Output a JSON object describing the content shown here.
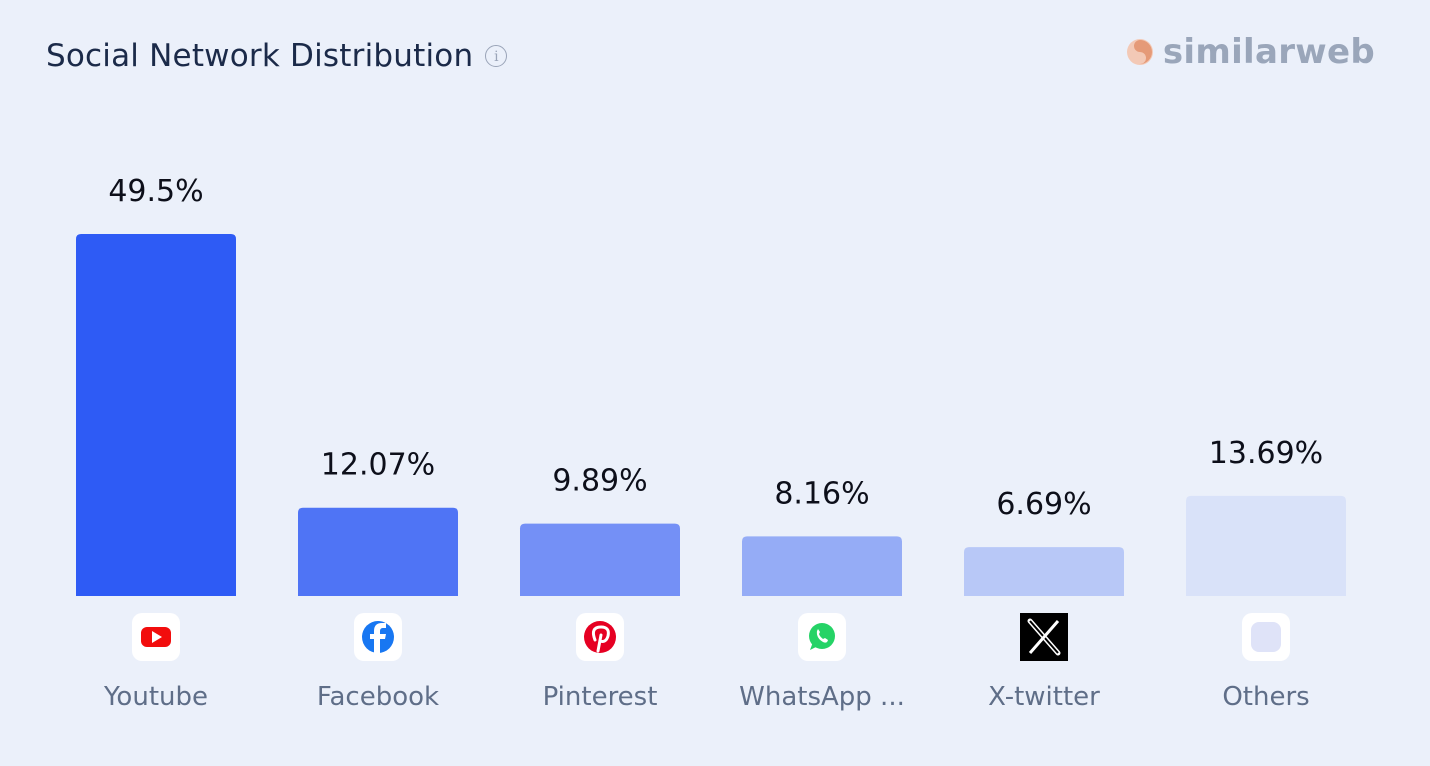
{
  "header": {
    "title": "Social Network Distribution",
    "info_icon": "info-icon"
  },
  "brand": {
    "name": "similarweb",
    "logo_icon": "similarweb-logo-icon",
    "color": "#9aa6ba"
  },
  "chart_data": {
    "type": "bar",
    "title": "Social Network Distribution",
    "categories": [
      "Youtube",
      "Facebook",
      "Pinterest",
      "WhatsApp ...",
      "X-twitter",
      "Others"
    ],
    "values": [
      49.5,
      12.07,
      9.89,
      8.16,
      6.69,
      13.69
    ],
    "value_labels": [
      "49.5%",
      "12.07%",
      "9.89%",
      "8.16%",
      "6.69%",
      "13.69%"
    ],
    "icons": [
      "youtube-icon",
      "facebook-icon",
      "pinterest-icon",
      "whatsapp-icon",
      "x-twitter-icon",
      "others-icon"
    ],
    "bar_colors": [
      "#2e5bf5",
      "#4f74f5",
      "#7490f6",
      "#95acf6",
      "#b8c8f7",
      "#d9e2f9"
    ],
    "ylim": [
      0,
      49.5
    ],
    "xlabel": "",
    "ylabel": "",
    "grid": false,
    "legend": "none"
  }
}
